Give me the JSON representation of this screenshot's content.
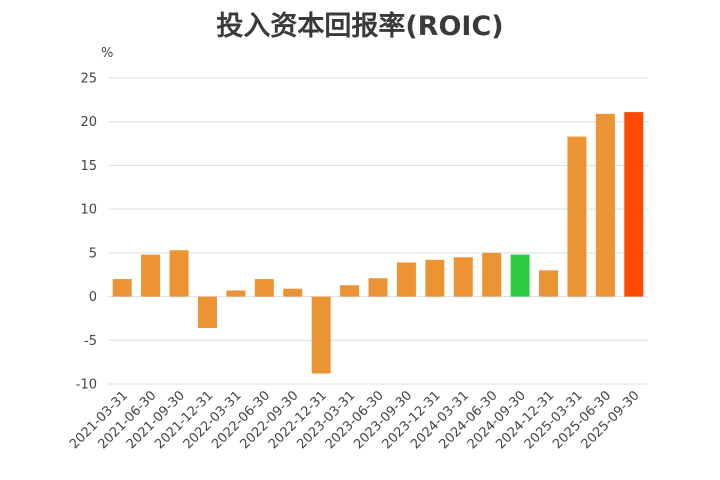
{
  "chart_data": {
    "type": "bar",
    "title": "投入资本回报率(ROIC)",
    "unit": "%",
    "categories": [
      "2021-03-31",
      "2021-06-30",
      "2021-09-30",
      "2021-12-31",
      "2022-03-31",
      "2022-06-30",
      "2022-09-30",
      "2022-12-31",
      "2023-03-31",
      "2023-06-30",
      "2023-09-30",
      "2023-12-31",
      "2024-03-31",
      "2024-06-30",
      "2024-09-30",
      "2024-12-31",
      "2025-03-31",
      "2025-06-30",
      "2025-09-30"
    ],
    "values": [
      2.0,
      4.8,
      5.3,
      -3.6,
      0.7,
      2.0,
      0.9,
      -8.8,
      1.3,
      2.1,
      3.9,
      4.2,
      4.5,
      5.0,
      4.8,
      3.0,
      18.3,
      20.9,
      21.1
    ],
    "ylim": [
      -10,
      25
    ],
    "yticks": [
      -10,
      -5,
      0,
      5,
      10,
      15,
      20,
      25
    ],
    "grid": true,
    "colors": {
      "default": "#ec9333",
      "highlight_green": "#2ecc40",
      "highlight_latest": "#ff4a04",
      "grid": "#d9dfe8",
      "axis": "#d9dfe8"
    },
    "bar_colors": [
      "default",
      "default",
      "default",
      "default",
      "default",
      "default",
      "default",
      "default",
      "default",
      "default",
      "default",
      "default",
      "default",
      "default",
      "highlight_green",
      "default",
      "default",
      "default",
      "highlight_latest"
    ]
  }
}
